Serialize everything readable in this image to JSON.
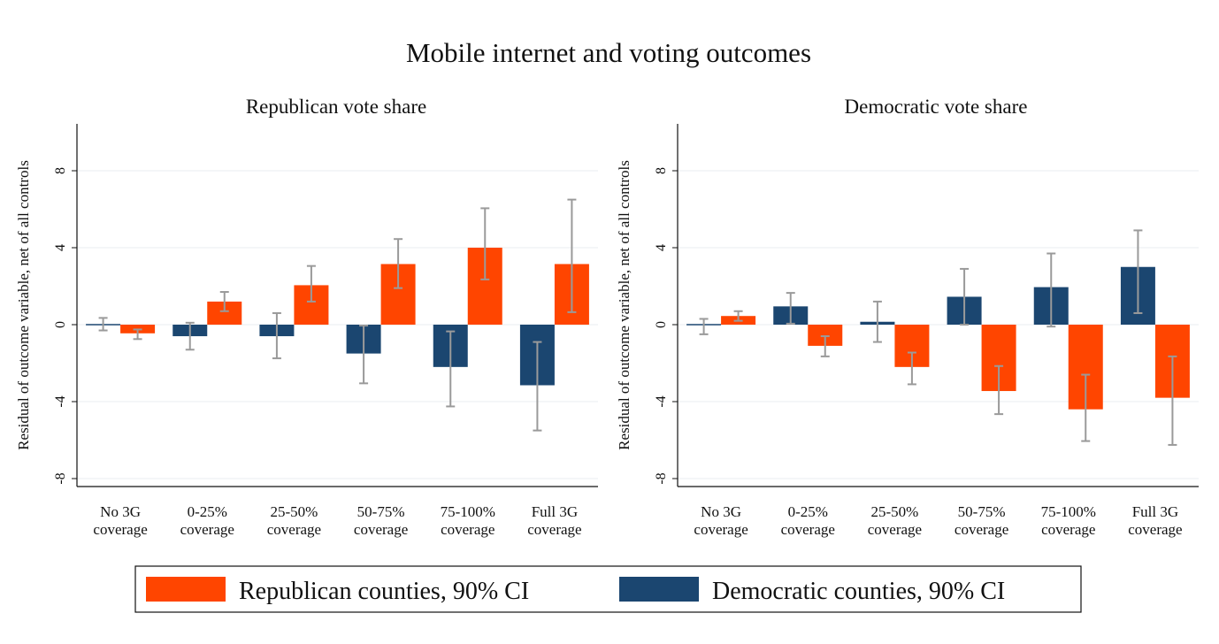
{
  "chart_data": [
    {
      "type": "bar",
      "title": "Republican vote share",
      "ylabel": "Residual of outcome variable, net of all controls",
      "ylim": [
        -9,
        10.5
      ],
      "yticks": [
        8,
        4,
        0,
        -4,
        -8
      ],
      "grid": true,
      "categories": [
        [
          "No 3G",
          "coverage"
        ],
        [
          "0-25%",
          "coverage"
        ],
        [
          "25-50%",
          "coverage"
        ],
        [
          "50-75%",
          "coverage"
        ],
        [
          "75-100%",
          "coverage"
        ],
        [
          "Full 3G",
          "coverage"
        ]
      ],
      "series": [
        {
          "name": "Democratic counties, 90% CI",
          "color": "#1b4670",
          "values": [
            0.0,
            -0.6,
            -0.6,
            -1.5,
            -2.2,
            -3.15
          ],
          "ci_low": [
            -0.3,
            -1.3,
            -1.75,
            -3.05,
            -4.25,
            -5.5
          ],
          "ci_high": [
            0.35,
            0.1,
            0.6,
            -0.05,
            -0.35,
            -0.9
          ]
        },
        {
          "name": "Republican counties, 90% CI",
          "color": "#ff4500",
          "values": [
            -0.45,
            1.2,
            2.05,
            3.15,
            4.0,
            3.15
          ],
          "ci_low": [
            -0.75,
            0.7,
            1.2,
            1.9,
            2.35,
            0.65
          ],
          "ci_high": [
            -0.25,
            1.7,
            3.05,
            4.45,
            6.05,
            6.5
          ]
        }
      ]
    },
    {
      "type": "bar",
      "title": "Democratic vote share",
      "ylabel": "Residual of outcome variable, net of all controls",
      "ylim": [
        -9,
        10.5
      ],
      "yticks": [
        8,
        4,
        0,
        -4,
        -8
      ],
      "grid": true,
      "categories": [
        [
          "No 3G",
          "coverage"
        ],
        [
          "0-25%",
          "coverage"
        ],
        [
          "25-50%",
          "coverage"
        ],
        [
          "50-75%",
          "coverage"
        ],
        [
          "75-100%",
          "coverage"
        ],
        [
          "Full 3G",
          "coverage"
        ]
      ],
      "series": [
        {
          "name": "Democratic counties, 90% CI",
          "color": "#1b4670",
          "values": [
            0.0,
            0.95,
            0.15,
            1.45,
            1.95,
            3.0
          ],
          "ci_low": [
            -0.5,
            0.05,
            -0.9,
            0.0,
            -0.1,
            0.6
          ],
          "ci_high": [
            0.3,
            1.65,
            1.2,
            2.9,
            3.7,
            4.9
          ]
        },
        {
          "name": "Republican counties, 90% CI",
          "color": "#ff4500",
          "values": [
            0.45,
            -1.1,
            -2.2,
            -3.45,
            -4.4,
            -3.8
          ],
          "ci_low": [
            0.2,
            -1.65,
            -3.1,
            -4.65,
            -6.05,
            -6.25
          ],
          "ci_high": [
            0.7,
            -0.6,
            -1.45,
            -2.15,
            -2.6,
            -1.65
          ]
        }
      ]
    }
  ],
  "figure": {
    "title": "Mobile internet and voting outcomes",
    "legend": [
      {
        "label": "Republican counties, 90% CI",
        "color": "#ff4500"
      },
      {
        "label": "Democratic counties, 90% CI",
        "color": "#1b4670"
      }
    ],
    "ci_color": "#9a9a9a"
  }
}
